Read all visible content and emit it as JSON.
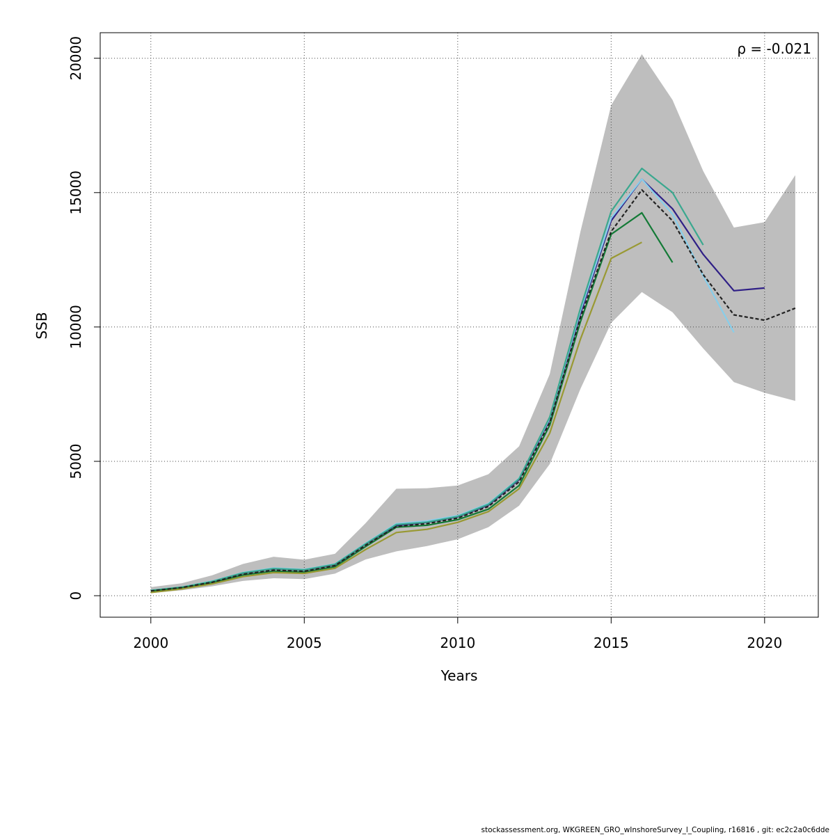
{
  "chart_data": {
    "type": "line",
    "title": "",
    "xlabel": "Years",
    "ylabel": "SSB",
    "xlim": [
      1998.35,
      2021.75
    ],
    "ylim": [
      -800,
      20950
    ],
    "x_ticks": [
      2000,
      2005,
      2010,
      2015,
      2020
    ],
    "y_ticks": [
      0,
      5000,
      10000,
      15000,
      20000
    ],
    "grid": true,
    "annotation": "ρ = -0.021",
    "confidence_band": {
      "x": [
        2000,
        2001,
        2002,
        2003,
        2004,
        2005,
        2006,
        2007,
        2008,
        2009,
        2010,
        2011,
        2012,
        2013,
        2014,
        2015,
        2016,
        2017,
        2018,
        2019,
        2020,
        2021
      ],
      "lower": [
        100,
        200,
        350,
        550,
        650,
        620,
        820,
        1350,
        1650,
        1850,
        2100,
        2550,
        3350,
        4900,
        7700,
        10150,
        11300,
        10550,
        9200,
        7950,
        7550,
        7250
      ],
      "upper": [
        320,
        460,
        760,
        1180,
        1450,
        1340,
        1560,
        2700,
        3980,
        4000,
        4100,
        4520,
        5560,
        8250,
        13550,
        18250,
        20150,
        18450,
        15800,
        13700,
        13900,
        15650
      ],
      "color": "#bebebe"
    },
    "series": [
      {
        "color": "#222222",
        "dashed": true,
        "x": [
          2000,
          2001,
          2002,
          2003,
          2004,
          2005,
          2006,
          2007,
          2008,
          2009,
          2010,
          2011,
          2012,
          2013,
          2014,
          2015,
          2016,
          2017,
          2018,
          2019,
          2020,
          2021
        ],
        "values": [
          180,
          300,
          500,
          800,
          950,
          910,
          1120,
          1880,
          2580,
          2680,
          2890,
          3320,
          4240,
          6450,
          10350,
          13550,
          15100,
          13950,
          11950,
          10450,
          10250,
          10700
        ]
      },
      {
        "color": "#2f1f86",
        "dashed": false,
        "x": [
          2000,
          2001,
          2002,
          2003,
          2004,
          2005,
          2006,
          2007,
          2008,
          2009,
          2010,
          2011,
          2012,
          2013,
          2014,
          2015,
          2016,
          2017,
          2018,
          2019,
          2020
        ],
        "values": [
          190,
          310,
          520,
          840,
          1000,
          950,
          1150,
          1920,
          2610,
          2730,
          2930,
          3370,
          4320,
          6550,
          10500,
          13950,
          15500,
          14400,
          12700,
          11350,
          11450
        ]
      },
      {
        "color": "#87ceeb",
        "dashed": false,
        "x": [
          2000,
          2001,
          2002,
          2003,
          2004,
          2005,
          2006,
          2007,
          2008,
          2009,
          2010,
          2011,
          2012,
          2013,
          2014,
          2015,
          2016,
          2017,
          2018,
          2019
        ],
        "values": [
          200,
          320,
          540,
          860,
          1030,
          980,
          1180,
          1950,
          2680,
          2780,
          2980,
          3430,
          4370,
          6600,
          10600,
          14050,
          15500,
          14200,
          11900,
          9800
        ]
      },
      {
        "color": "#3aa88f",
        "dashed": false,
        "x": [
          2000,
          2001,
          2002,
          2003,
          2004,
          2005,
          2006,
          2007,
          2008,
          2009,
          2010,
          2011,
          2012,
          2013,
          2014,
          2015,
          2016,
          2017,
          2018
        ],
        "values": [
          195,
          315,
          530,
          850,
          1010,
          960,
          1170,
          1930,
          2650,
          2740,
          2950,
          3400,
          4350,
          6650,
          10700,
          14300,
          15900,
          15000,
          13050
        ]
      },
      {
        "color": "#137a36",
        "dashed": false,
        "x": [
          2000,
          2001,
          2002,
          2003,
          2004,
          2005,
          2006,
          2007,
          2008,
          2009,
          2010,
          2011,
          2012,
          2013,
          2014,
          2015,
          2016,
          2017
        ],
        "values": [
          170,
          290,
          480,
          770,
          920,
          880,
          1080,
          1830,
          2550,
          2620,
          2830,
          3220,
          4100,
          6350,
          10200,
          13450,
          14250,
          12400
        ]
      },
      {
        "color": "#999933",
        "dashed": false,
        "x": [
          2000,
          2001,
          2002,
          2003,
          2004,
          2005,
          2006,
          2007,
          2008,
          2009,
          2010,
          2011,
          2012,
          2013,
          2014,
          2015,
          2016
        ],
        "values": [
          120,
          250,
          440,
          710,
          860,
          830,
          1020,
          1720,
          2350,
          2470,
          2730,
          3130,
          3980,
          6050,
          9550,
          12550,
          13150
        ]
      }
    ]
  },
  "footer": "stockassessment.org, WKGREEN_GRO_wInshoreSurvey_l_Coupling, r16816 , git: ec2c2a0c6dde"
}
